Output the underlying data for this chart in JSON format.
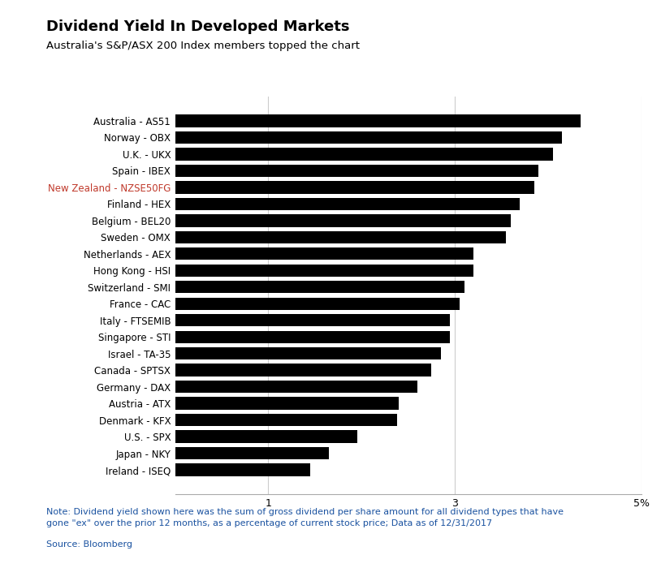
{
  "title": "Dividend Yield In Developed Markets",
  "subtitle": "Australia's S&P/ASX 200 Index members topped the chart",
  "note": "Note: Dividend yield shown here was the sum of gross dividend per share amount for all dividend types that have\ngone \"ex\" over the prior 12 months, as a percentage of current stock price; Data as of 12/31/2017",
  "source": "Source: Bloomberg",
  "categories": [
    "Australia - AS51",
    "Norway - OBX",
    "U.K. - UKX",
    "Spain - IBEX",
    "New Zealand - NZSE50FG",
    "Finland - HEX",
    "Belgium - BEL20",
    "Sweden - OMX",
    "Netherlands - AEX",
    "Hong Kong - HSI",
    "Switzerland - SMI",
    "France - CAC",
    "Italy - FTSEMIB",
    "Singapore - STI",
    "Israel - TA-35",
    "Canada - SPTSX",
    "Germany - DAX",
    "Austria - ATX",
    "Denmark - KFX",
    "U.S. - SPX",
    "Japan - NKY",
    "Ireland - ISEQ"
  ],
  "values": [
    4.35,
    4.15,
    4.05,
    3.9,
    3.85,
    3.7,
    3.6,
    3.55,
    3.2,
    3.2,
    3.1,
    3.05,
    2.95,
    2.95,
    2.85,
    2.75,
    2.6,
    2.4,
    2.38,
    1.95,
    1.65,
    1.45
  ],
  "bar_color": "#000000",
  "background_color": "#ffffff",
  "title_color": "#000000",
  "subtitle_color": "#000000",
  "note_color": "#1a52a0",
  "source_color": "#1a52a0",
  "highlight_labels": [
    "New Zealand - NZSE50FG"
  ],
  "highlight_color": "#c0392b",
  "xlim": [
    0,
    5
  ],
  "xticks": [
    1,
    3,
    5
  ],
  "xticklabels": [
    "1",
    "3",
    "5%"
  ],
  "title_fontsize": 13,
  "subtitle_fontsize": 9.5,
  "label_fontsize": 8.5,
  "tick_fontsize": 9,
  "note_fontsize": 8
}
